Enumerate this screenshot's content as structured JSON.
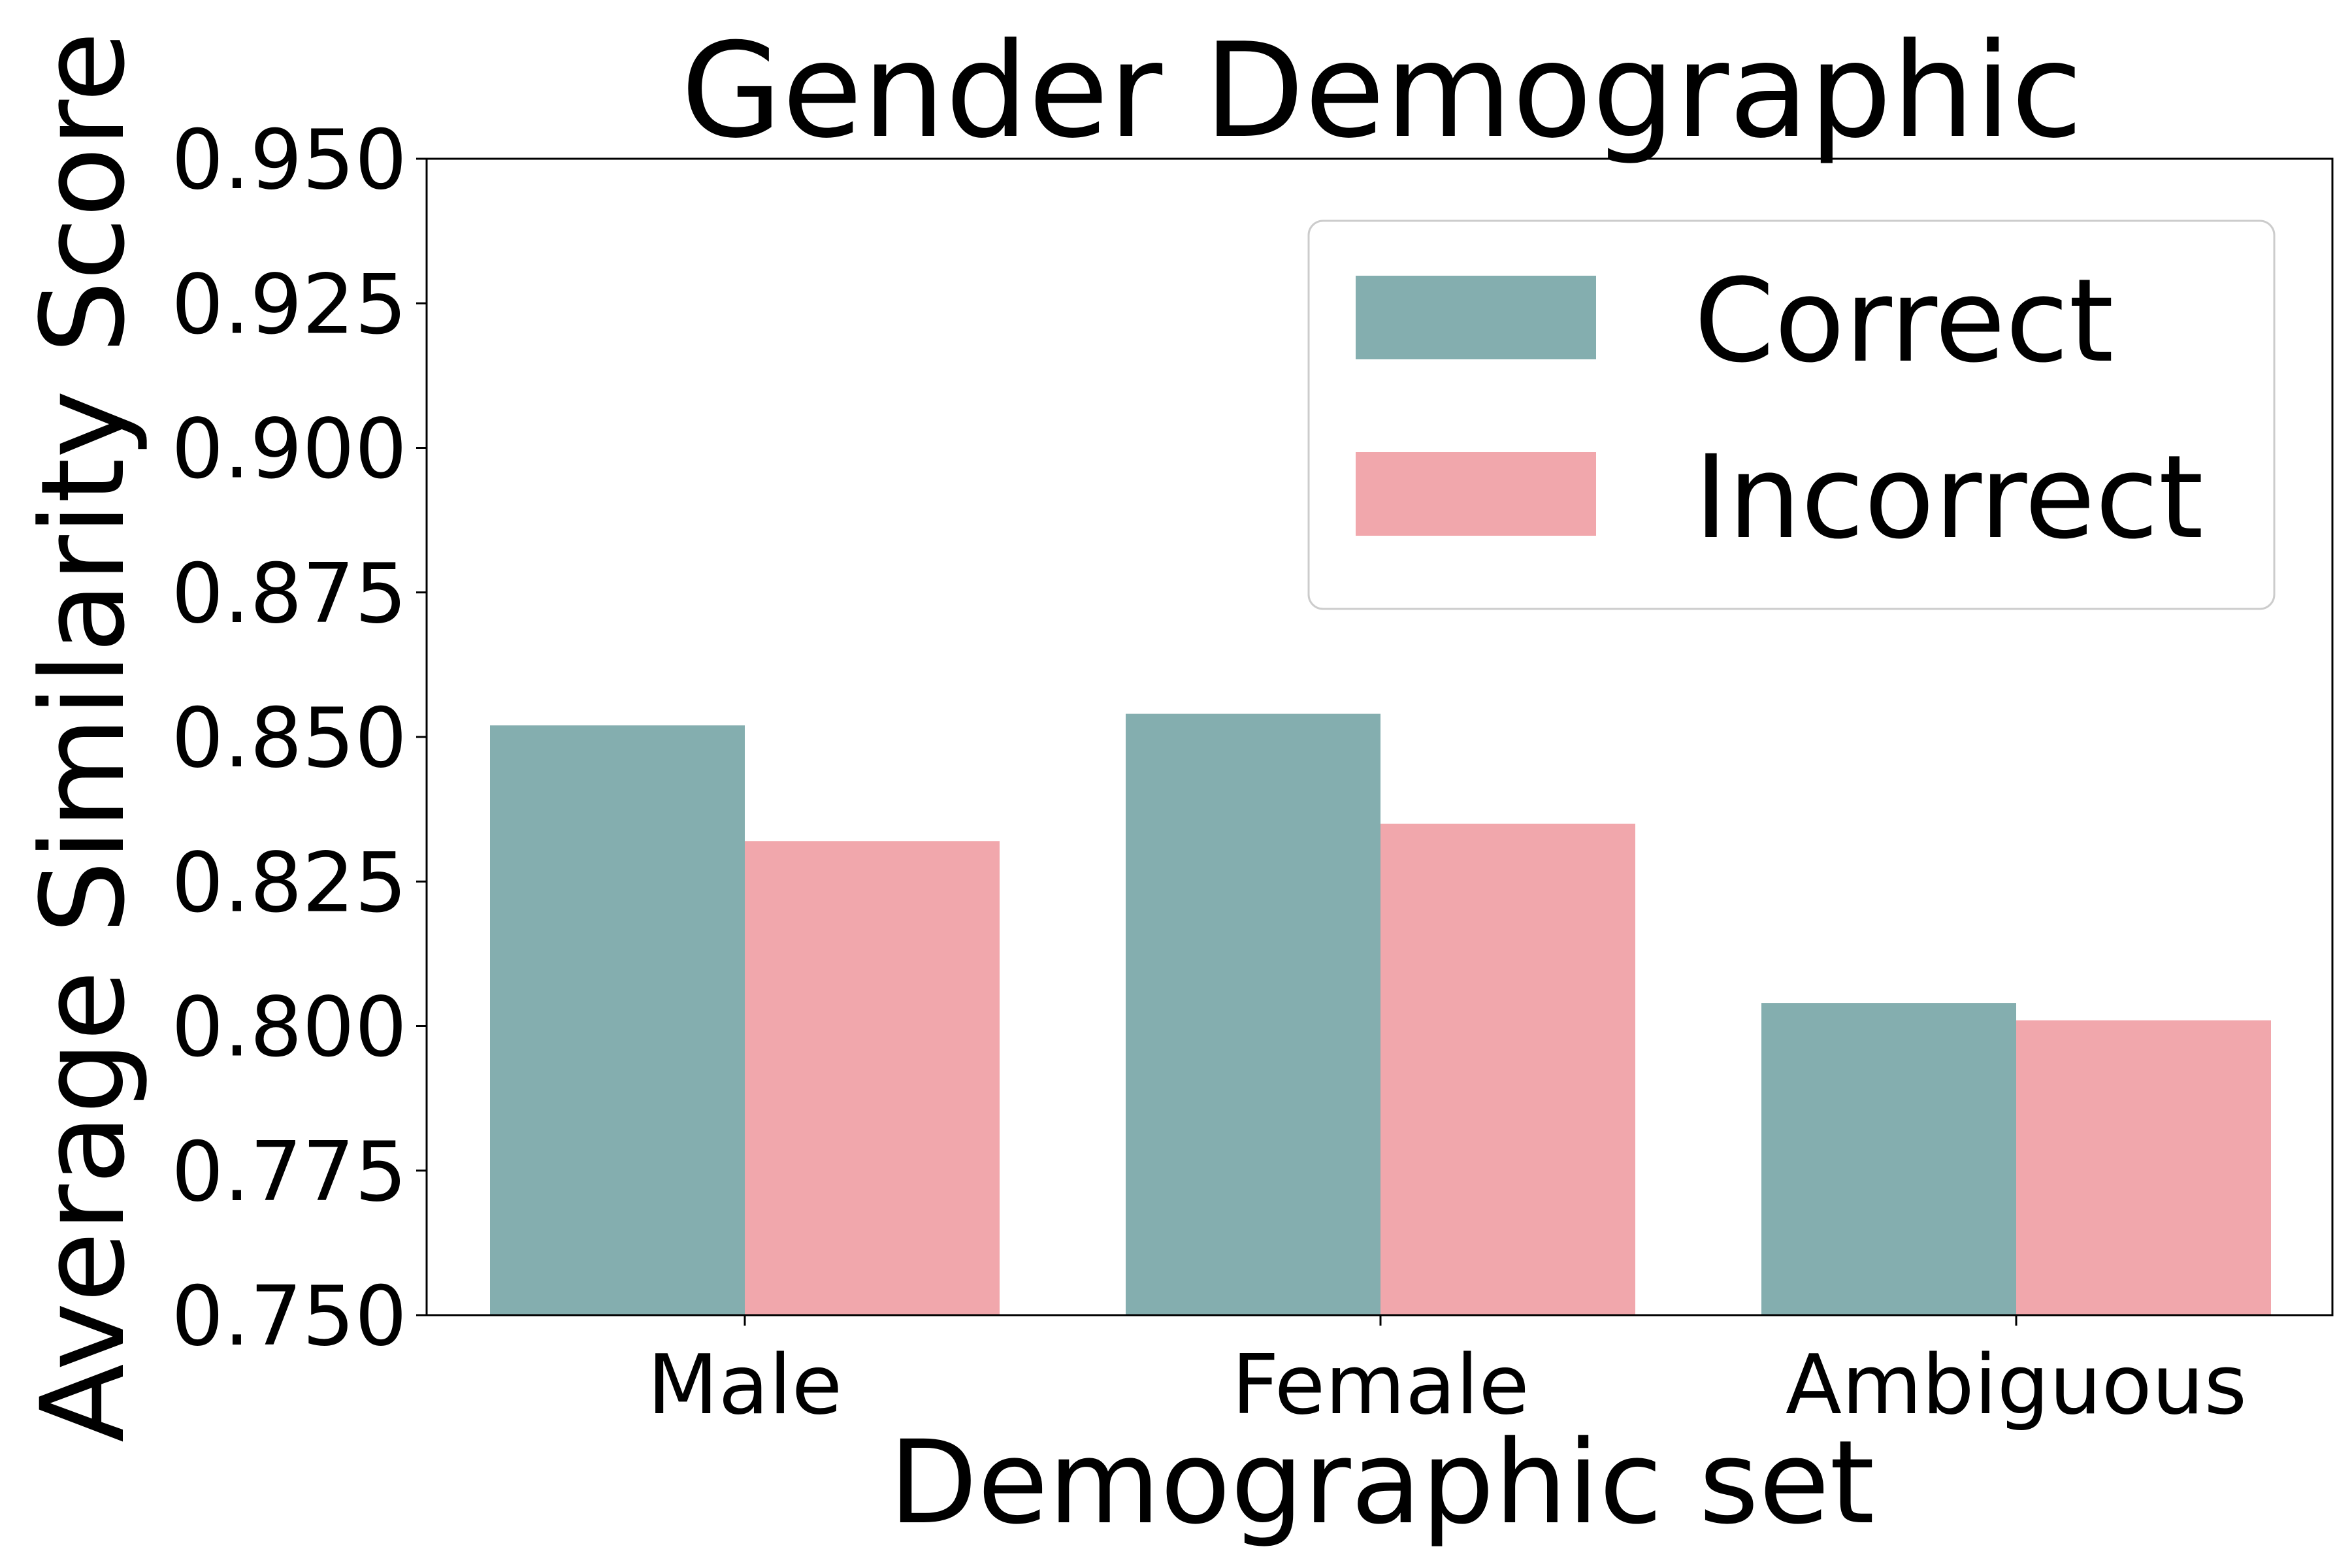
{
  "chart_data": {
    "type": "bar",
    "title": "Gender Demographic",
    "xlabel": "Demographic set",
    "ylabel": "Average Similarity Score",
    "categories": [
      "Male",
      "Female",
      "Ambiguous"
    ],
    "series": [
      {
        "name": "Correct",
        "values": [
          0.852,
          0.854,
          0.804
        ],
        "color": "#84aeaf"
      },
      {
        "name": "Incorrect",
        "values": [
          0.832,
          0.835,
          0.801
        ],
        "color": "#f1a7ac"
      }
    ],
    "ylim": [
      0.75,
      0.95
    ],
    "yticks": [
      "0.750",
      "0.775",
      "0.800",
      "0.825",
      "0.850",
      "0.875",
      "0.900",
      "0.925",
      "0.950"
    ],
    "grid": false,
    "legend_position": "top-right"
  }
}
